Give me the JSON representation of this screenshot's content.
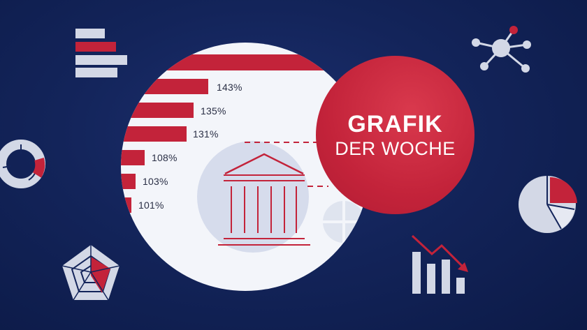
{
  "colors": {
    "background": "#13245a",
    "accent_red": "#c3233a",
    "circle_fill": "#f3f5fa",
    "icon_light": "#d3d8e6"
  },
  "badge": {
    "line1": "GRAFIK",
    "line2": "DER WOCHE"
  },
  "bar_labels": [
    "143%",
    "135%",
    "131%",
    "108%",
    "103%",
    "101%"
  ],
  "icons": [
    "horizontal-bars-icon",
    "network-icon",
    "donut-chart-icon",
    "pie-chart-icon",
    "radar-chart-icon",
    "declining-bar-chart-icon",
    "bank-building-icon"
  ]
}
